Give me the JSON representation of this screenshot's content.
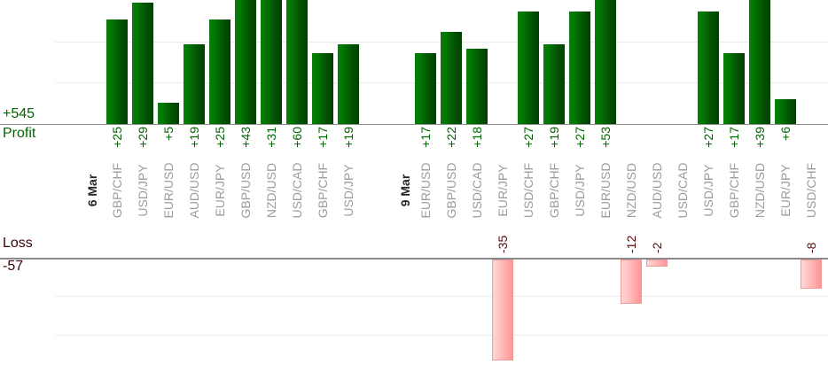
{
  "chart_data": {
    "type": "bar",
    "orientation": "vertical-mirrored",
    "profit_section": {
      "name": "Profit",
      "total_label": "+545"
    },
    "loss_section": {
      "name": "Loss",
      "total_label": "-57"
    },
    "groups": [
      {
        "date": "6 Mar",
        "entries": [
          {
            "pair": "GBP/CHF",
            "value": 25
          },
          {
            "pair": "USD/JPY",
            "value": 29
          },
          {
            "pair": "EUR/USD",
            "value": 5
          },
          {
            "pair": "AUD/USD",
            "value": 19
          },
          {
            "pair": "EUR/JPY",
            "value": 25
          },
          {
            "pair": "GBP/USD",
            "value": 43
          },
          {
            "pair": "NZD/USD",
            "value": 31
          },
          {
            "pair": "USD/CAD",
            "value": 60
          },
          {
            "pair": "GBP/CHF",
            "value": 17
          },
          {
            "pair": "USD/JPY",
            "value": 19
          }
        ]
      },
      {
        "date": "9 Mar",
        "entries": [
          {
            "pair": "EUR/USD",
            "value": 17
          },
          {
            "pair": "GBP/USD",
            "value": 22
          },
          {
            "pair": "USD/CAD",
            "value": 18
          },
          {
            "pair": "EUR/JPY",
            "value": -35
          },
          {
            "pair": "USD/CHF",
            "value": 27
          },
          {
            "pair": "GBP/CHF",
            "value": 19
          },
          {
            "pair": "USD/JPY",
            "value": 27
          },
          {
            "pair": "EUR/USD",
            "value": 53
          },
          {
            "pair": "NZD/USD",
            "value": -12
          },
          {
            "pair": "AUD/USD",
            "value": -2
          },
          {
            "pair": "USD/CAD",
            "value": null
          },
          {
            "pair": "USD/JPY",
            "value": 27
          },
          {
            "pair": "GBP/CHF",
            "value": 17
          },
          {
            "pair": "NZD/USD",
            "value": 39
          },
          {
            "pair": "EUR/JPY",
            "value": 6
          },
          {
            "pair": "USD/CHF",
            "value": -8
          }
        ]
      }
    ],
    "axis": {
      "gridline_step_units": 10,
      "profit_visible_max_units": 30,
      "loss_visible_max_units": 27,
      "grid_on": true
    },
    "colors": {
      "profit_text": "#006600",
      "profit_bar_light": "#007a00",
      "profit_bar_dark": "#003f00",
      "loss_bar_light": "#ffd6d6",
      "loss_bar_dark": "#ff9898",
      "loss_bar_border": "#f09999",
      "loss_value_text": "#5a0c0c",
      "loss_heading_text": "#3b0303",
      "pair_label_gray": "#9c9c9c",
      "date_label": "#262626",
      "axis_line": "#8a8a8a",
      "gridline": "#ebebeb"
    }
  }
}
